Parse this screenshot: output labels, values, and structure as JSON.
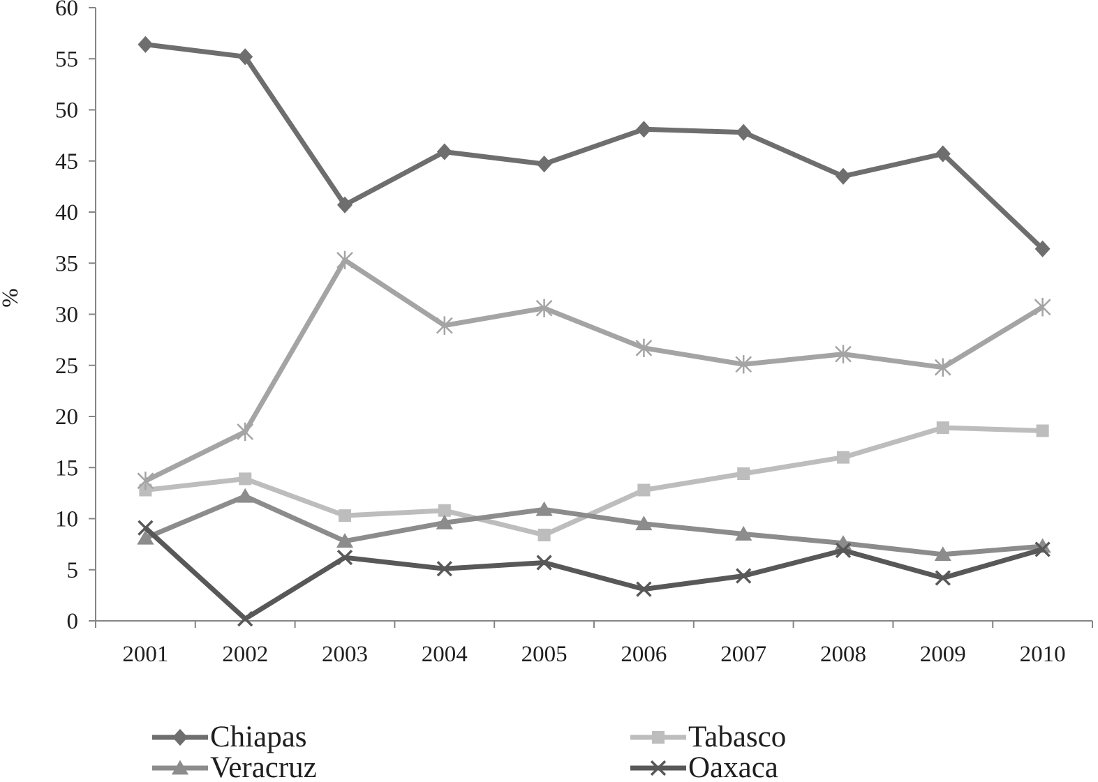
{
  "chart_data": {
    "type": "line",
    "categories": [
      "2001",
      "2002",
      "2003",
      "2004",
      "2005",
      "2006",
      "2007",
      "2008",
      "2009",
      "2010"
    ],
    "ylabel": "%",
    "ylim": [
      0,
      60
    ],
    "yticks": [
      0,
      5,
      10,
      15,
      20,
      25,
      30,
      35,
      40,
      45,
      50,
      55,
      60
    ],
    "grid": false,
    "legend_position": "bottom",
    "series": [
      {
        "name": "Chiapas",
        "marker": "diamond",
        "color": "#6e6e6e",
        "values": [
          56.4,
          55.2,
          40.7,
          45.9,
          44.7,
          48.1,
          47.8,
          43.5,
          45.7,
          36.4
        ]
      },
      {
        "name": "Tabasco",
        "marker": "square",
        "color": "#bdbdbd",
        "values": [
          12.8,
          13.9,
          10.3,
          10.8,
          8.4,
          12.8,
          14.4,
          16.0,
          18.9,
          18.6
        ]
      },
      {
        "name": "Veracruz",
        "marker": "triangle",
        "color": "#8c8c8c",
        "values": [
          8.1,
          12.2,
          7.8,
          9.6,
          10.9,
          9.5,
          8.5,
          7.6,
          6.5,
          7.3
        ]
      },
      {
        "name": "Oaxaca",
        "marker": "x",
        "color": "#585858",
        "values": [
          9.1,
          0.2,
          6.2,
          5.1,
          5.7,
          3.1,
          4.4,
          6.9,
          4.2,
          7.0
        ]
      },
      {
        "marker": "asterisk",
        "color": "#a4a4a4",
        "values": [
          13.7,
          18.5,
          35.3,
          28.9,
          30.6,
          26.7,
          25.1,
          26.1,
          24.8,
          30.7
        ]
      }
    ]
  }
}
